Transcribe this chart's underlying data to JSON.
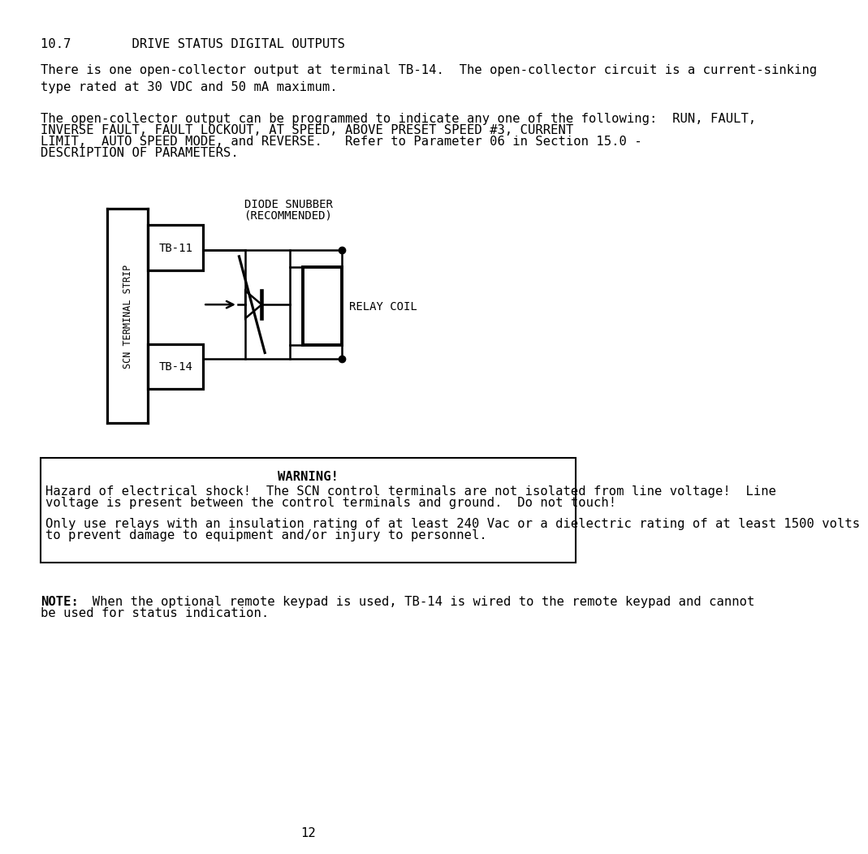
{
  "title_section": "10.7        DRIVE STATUS DIGITAL OUTPUTS",
  "para1": "There is one open-collector output at terminal TB-14.  The open-collector circuit is a current-sinking\ntype rated at 30 VDC and 50 mA maximum.",
  "para2_line1": "The open-collector output can be programmed to indicate any one of the following:  RUN, FAULT,",
  "para2_line2": "INVERSE FAULT, FAULT LOCKOUT, AT SPEED, ABOVE PRESET SPEED #3, CURRENT",
  "para2_line3": "LIMIT,  AUTO SPEED MODE, and REVERSE.   Refer to Parameter 06 in Section 15.0 -",
  "para2_line4": "DESCRIPTION OF PARAMETERS.",
  "diode_snubber_line1": "DIODE SNUBBER",
  "diode_snubber_line2": "(RECOMMENDED)",
  "relay_coil_label": "RELAY COIL",
  "tb11_label": "TB-11",
  "tb14_label": "TB-14",
  "scn_label": "SCN TERMINAL STRIP",
  "warning_title": "WARNING!",
  "warning_text1a": "Hazard of electrical shock!  The SCN control terminals are not isolated from line voltage!  Line",
  "warning_text1b": "voltage is present between the control terminals and ground.  Do not touch!",
  "warning_text2a": "Only use relays with an insulation rating of at least 240 Vac or a dielectric rating of at least 1500 volts",
  "warning_text2b": "to prevent damage to equipment and/or injury to personnel.",
  "note_bold": "NOTE:",
  "note_rest": "  When the optional remote keypad is used, TB-14 is wired to the remote keypad and cannot",
  "note_line2": "be used for status indication.",
  "page_number": "12",
  "bg_color": "#ffffff",
  "text_color": "#000000",
  "lw": 1.8
}
